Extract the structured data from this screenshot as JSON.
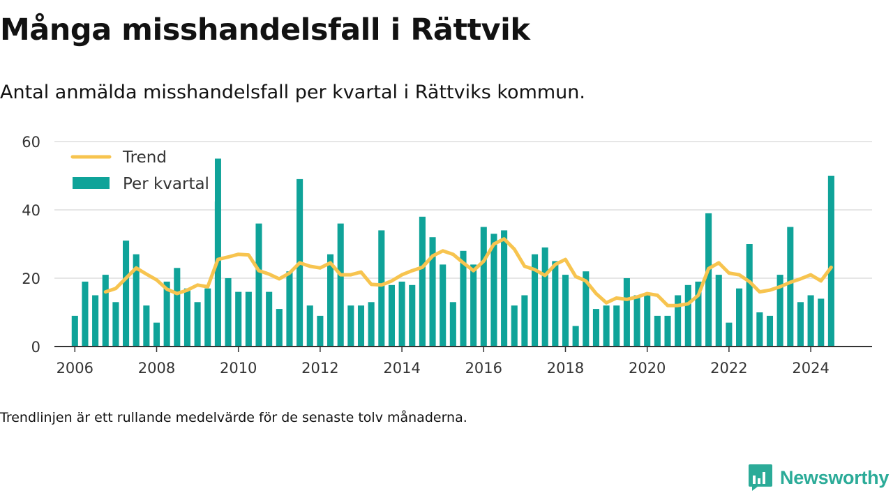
{
  "title": "Många misshandelsfall i Rättvik",
  "subtitle": "Antal anmälda misshandelsfall per kvartal i Rättviks kommun.",
  "footnote": "Trendlinjen är ett rullande medelvärde för de senaste tolv månaderna.",
  "brand": {
    "name": "Newsworthy",
    "icon": "newsworthy-bar-chart-icon"
  },
  "colors": {
    "bars": "#0fa399",
    "trend": "#f7c44f",
    "grid": "#dedede",
    "axis": "#333333",
    "brand": "#2bab98"
  },
  "chart_data": {
    "type": "bar",
    "x_start": "2006 Q1",
    "x_end": "2024 Q3",
    "xlim": [
      2005.5,
      2025.5
    ],
    "ylim": [
      0,
      60
    ],
    "yticks": [
      0,
      20,
      40,
      60
    ],
    "xticks": [
      2006,
      2008,
      2010,
      2012,
      2014,
      2016,
      2018,
      2020,
      2022,
      2024
    ],
    "grid": true,
    "legend_position": "top-left",
    "series": [
      {
        "name": "Per kvartal",
        "kind": "bar",
        "x": [
          "2006 Q1",
          "2006 Q2",
          "2006 Q3",
          "2006 Q4",
          "2007 Q1",
          "2007 Q2",
          "2007 Q3",
          "2007 Q4",
          "2008 Q1",
          "2008 Q2",
          "2008 Q3",
          "2008 Q4",
          "2009 Q1",
          "2009 Q2",
          "2009 Q3",
          "2009 Q4",
          "2010 Q1",
          "2010 Q2",
          "2010 Q3",
          "2010 Q4",
          "2011 Q1",
          "2011 Q2",
          "2011 Q3",
          "2011 Q4",
          "2012 Q1",
          "2012 Q2",
          "2012 Q3",
          "2012 Q4",
          "2013 Q1",
          "2013 Q2",
          "2013 Q3",
          "2013 Q4",
          "2014 Q1",
          "2014 Q2",
          "2014 Q3",
          "2014 Q4",
          "2015 Q1",
          "2015 Q2",
          "2015 Q3",
          "2015 Q4",
          "2016 Q1",
          "2016 Q2",
          "2016 Q3",
          "2016 Q4",
          "2017 Q1",
          "2017 Q2",
          "2017 Q3",
          "2017 Q4",
          "2018 Q1",
          "2018 Q2",
          "2018 Q3",
          "2018 Q4",
          "2019 Q1",
          "2019 Q2",
          "2019 Q3",
          "2019 Q4",
          "2020 Q1",
          "2020 Q2",
          "2020 Q3",
          "2020 Q4",
          "2021 Q1",
          "2021 Q2",
          "2021 Q3",
          "2021 Q4",
          "2022 Q1",
          "2022 Q2",
          "2022 Q3",
          "2022 Q4",
          "2023 Q1",
          "2023 Q2",
          "2023 Q3",
          "2023 Q4",
          "2024 Q1",
          "2024 Q2",
          "2024 Q3"
        ],
        "values": [
          9,
          19,
          15,
          21,
          13,
          31,
          27,
          12,
          7,
          19,
          23,
          17,
          13,
          17,
          55,
          20,
          16,
          16,
          36,
          16,
          11,
          22,
          49,
          12,
          9,
          27,
          36,
          12,
          12,
          13,
          34,
          18,
          19,
          18,
          38,
          32,
          24,
          13,
          28,
          24,
          35,
          33,
          34,
          12,
          15,
          27,
          29,
          25,
          21,
          6,
          22,
          11,
          12,
          12,
          20,
          15,
          15,
          9,
          9,
          15,
          18,
          19,
          39,
          21,
          7,
          17,
          30,
          10,
          9,
          21,
          35,
          13,
          15,
          14,
          50
        ]
      },
      {
        "name": "Trend",
        "kind": "line",
        "x": [
          "2006 Q4",
          "2007 Q1",
          "2007 Q2",
          "2007 Q3",
          "2007 Q4",
          "2008 Q1",
          "2008 Q2",
          "2008 Q3",
          "2008 Q4",
          "2009 Q1",
          "2009 Q2",
          "2009 Q3",
          "2009 Q4",
          "2010 Q1",
          "2010 Q2",
          "2010 Q3",
          "2010 Q4",
          "2011 Q1",
          "2011 Q2",
          "2011 Q3",
          "2011 Q4",
          "2012 Q1",
          "2012 Q2",
          "2012 Q3",
          "2012 Q4",
          "2013 Q1",
          "2013 Q2",
          "2013 Q3",
          "2013 Q4",
          "2014 Q1",
          "2014 Q2",
          "2014 Q3",
          "2014 Q4",
          "2015 Q1",
          "2015 Q2",
          "2015 Q3",
          "2015 Q4",
          "2016 Q1",
          "2016 Q2",
          "2016 Q3",
          "2016 Q4",
          "2017 Q1",
          "2017 Q2",
          "2017 Q3",
          "2017 Q4",
          "2018 Q1",
          "2018 Q2",
          "2018 Q3",
          "2018 Q4",
          "2019 Q1",
          "2019 Q2",
          "2019 Q3",
          "2019 Q4",
          "2020 Q1",
          "2020 Q2",
          "2020 Q3",
          "2020 Q4",
          "2021 Q1",
          "2021 Q2",
          "2021 Q3",
          "2021 Q4",
          "2022 Q1",
          "2022 Q2",
          "2022 Q3",
          "2022 Q4",
          "2023 Q1",
          "2023 Q2",
          "2023 Q3",
          "2023 Q4",
          "2024 Q1",
          "2024 Q2",
          "2024 Q3"
        ],
        "values": [
          16,
          17,
          20,
          23,
          21.2,
          19.5,
          16.8,
          15.5,
          16.5,
          18,
          17.5,
          25.5,
          26.2,
          27,
          26.8,
          22.2,
          21.2,
          19.8,
          21.5,
          24.5,
          23.5,
          23,
          24.5,
          21,
          21,
          21.8,
          18.2,
          18,
          19.2,
          21,
          22.2,
          23.2,
          26.5,
          28,
          27,
          24.5,
          22.2,
          25,
          30,
          31.5,
          28.5,
          23.5,
          22.5,
          20.8,
          24,
          25.5,
          20.5,
          19.2,
          15.5,
          12.8,
          14.2,
          13.8,
          14.5,
          15.5,
          15,
          12,
          12,
          12.5,
          15,
          22.8,
          24.5,
          21.5,
          21,
          19,
          16,
          16.5,
          17.5,
          18.8,
          19.8,
          21,
          19.2,
          23.2
        ]
      }
    ]
  }
}
